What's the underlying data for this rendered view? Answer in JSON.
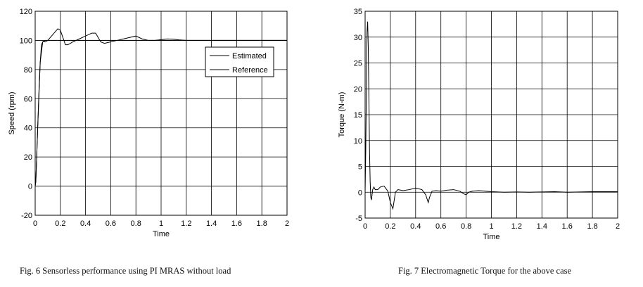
{
  "captions": [
    "Fig. 6 Sensorless performance using PI MRAS without load",
    "Fig. 7 Electromagnetic Torque for the above case"
  ],
  "chart_data": [
    {
      "type": "line",
      "title": "",
      "xlabel": "Time",
      "ylabel": "Speed (rpm)",
      "xlim": [
        0,
        2
      ],
      "ylim": [
        -20,
        120
      ],
      "xticks": [
        0,
        0.2,
        0.4,
        0.6,
        0.8,
        1,
        1.2,
        1.4,
        1.6,
        1.8,
        2
      ],
      "yticks": [
        -20,
        0,
        20,
        40,
        60,
        80,
        100,
        120
      ],
      "xtick_labels": [
        "0",
        "0.2",
        "0.4",
        "0.6",
        "0.8",
        "1",
        "1.2",
        "1.4",
        "1.6",
        "1.8",
        "2"
      ],
      "ytick_labels": [
        "-20",
        "0",
        "20",
        "40",
        "60",
        "80",
        "100",
        "120"
      ],
      "grid": true,
      "legend": "top-right",
      "series": [
        {
          "name": "Estimated",
          "color": "#000000",
          "x": [
            0,
            0.005,
            0.01,
            0.02,
            0.03,
            0.04,
            0.05,
            0.06,
            0.08,
            0.1,
            0.12,
            0.15,
            0.18,
            0.2,
            0.22,
            0.24,
            0.26,
            0.3,
            0.35,
            0.4,
            0.45,
            0.48,
            0.5,
            0.52,
            0.55,
            0.6,
            0.65,
            0.7,
            0.75,
            0.8,
            0.85,
            0.9,
            0.95,
            1.0,
            1.05,
            1.1,
            1.15,
            1.2,
            1.3,
            1.4,
            1.5,
            1.6,
            1.7,
            1.8,
            1.9,
            2.0
          ],
          "y": [
            0,
            3,
            15,
            40,
            65,
            85,
            97,
            99,
            99,
            100,
            102,
            105,
            108,
            107,
            102,
            97,
            97,
            99,
            101,
            103,
            105,
            105,
            102,
            99,
            98,
            99,
            100,
            101,
            102,
            103,
            101,
            100,
            100,
            100.5,
            101,
            100.8,
            100.3,
            100,
            100,
            100,
            100,
            100,
            100,
            100,
            100,
            100
          ]
        },
        {
          "name": "Reference",
          "color": "#000000",
          "x": [
            0,
            0.005,
            0.02,
            0.04,
            0.06,
            0.08,
            2.0
          ],
          "y": [
            0,
            3,
            40,
            85,
            99,
            100,
            100
          ]
        }
      ]
    },
    {
      "type": "line",
      "title": "",
      "xlabel": "Time",
      "ylabel": "Torque (N-m)",
      "xlim": [
        0,
        2
      ],
      "ylim": [
        -5,
        35
      ],
      "xticks": [
        0,
        0.2,
        0.4,
        0.6,
        0.8,
        1,
        1.2,
        1.4,
        1.6,
        1.8,
        2
      ],
      "yticks": [
        -5,
        0,
        5,
        10,
        15,
        20,
        25,
        30,
        35
      ],
      "xtick_labels": [
        "0",
        "0.2",
        "0.4",
        "0.6",
        "0.8",
        "1",
        "1.2",
        "1.4",
        "1.6",
        "1.8",
        "2"
      ],
      "ytick_labels": [
        "-5",
        "0",
        "5",
        "10",
        "15",
        "20",
        "25",
        "30",
        "35"
      ],
      "grid": true,
      "series": [
        {
          "color": "#000000",
          "x": [
            0,
            0.005,
            0.01,
            0.015,
            0.02,
            0.025,
            0.03,
            0.035,
            0.04,
            0.045,
            0.05,
            0.06,
            0.07,
            0.08,
            0.1,
            0.12,
            0.15,
            0.18,
            0.2,
            0.22,
            0.24,
            0.26,
            0.3,
            0.35,
            0.4,
            0.45,
            0.48,
            0.5,
            0.51,
            0.53,
            0.56,
            0.6,
            0.65,
            0.7,
            0.75,
            0.78,
            0.8,
            0.82,
            0.85,
            0.9,
            0.95,
            1.0,
            1.1,
            1.2,
            1.3,
            1.4,
            1.5,
            1.6,
            1.8,
            2.0
          ],
          "y": [
            0,
            8,
            20,
            31,
            33,
            28,
            18,
            8,
            2,
            -1,
            -1.5,
            0.5,
            1,
            0.5,
            0.5,
            1,
            1.2,
            0.2,
            -2,
            -3.2,
            0,
            0.5,
            0.3,
            0.5,
            0.8,
            0.5,
            -0.5,
            -2,
            -1,
            0.2,
            0.3,
            0.2,
            0.4,
            0.5,
            0.2,
            -0.3,
            -0.5,
            0,
            0.2,
            0.3,
            0.2,
            0.1,
            0,
            0.05,
            0,
            0.05,
            0.1,
            0,
            0.1,
            0.1
          ]
        }
      ]
    }
  ]
}
